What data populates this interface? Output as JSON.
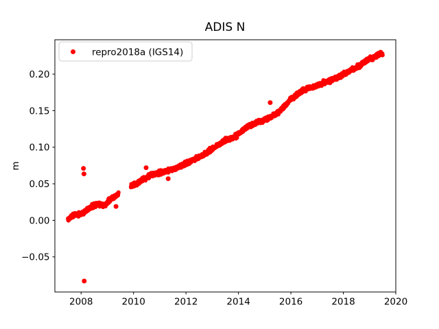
{
  "window": {
    "title": "ADIS N"
  },
  "chart_data": {
    "type": "scatter",
    "title": "ADIS N",
    "xlabel": "",
    "ylabel": "m",
    "xlim": [
      2007,
      2020
    ],
    "ylim": [
      -0.098,
      0.247
    ],
    "xtick_values": [
      2008,
      2010,
      2012,
      2014,
      2016,
      2018,
      2020
    ],
    "xtick_labels": [
      "2008",
      "2010",
      "2012",
      "2014",
      "2016",
      "2018",
      "2020"
    ],
    "ytick_values": [
      -0.05,
      0.0,
      0.05,
      0.1,
      0.15,
      0.2
    ],
    "ytick_labels": [
      "−0.05",
      "0.00",
      "0.05",
      "0.10",
      "0.15",
      "0.20"
    ],
    "grid": false,
    "legend": {
      "position": "upper left",
      "label": "repro2018a (IGS14)"
    },
    "colors": {
      "background": "#ffffff",
      "text": "#000000",
      "spine": "#000000",
      "legend_border": "#cccccc",
      "marker": "#ff0000"
    },
    "series": [
      {
        "name": "repro2018a (IGS14)",
        "color": "#ff0000",
        "marker": "o",
        "marker_radius_px": 3,
        "x_start": 2007.5,
        "x_end": 2019.5,
        "points_per_year": 150,
        "noise_sd": 0.0014,
        "seed": 11,
        "gaps": [
          [
            2009.43,
            2009.9
          ]
        ],
        "trend_anchors": [
          [
            2007.5,
            0.001
          ],
          [
            2007.75,
            0.008
          ],
          [
            2008.05,
            0.01
          ],
          [
            2008.35,
            0.018
          ],
          [
            2008.65,
            0.022
          ],
          [
            2008.9,
            0.0205
          ],
          [
            2009.15,
            0.03
          ],
          [
            2009.43,
            0.036
          ],
          [
            2009.9,
            0.047
          ],
          [
            2010.1,
            0.05
          ],
          [
            2010.3,
            0.0545
          ],
          [
            2010.58,
            0.06
          ],
          [
            2010.75,
            0.0635
          ],
          [
            2011.1,
            0.0655
          ],
          [
            2011.5,
            0.07
          ],
          [
            2012.0,
            0.0775
          ],
          [
            2012.25,
            0.0825
          ],
          [
            2012.6,
            0.088
          ],
          [
            2013.0,
            0.097
          ],
          [
            2013.5,
            0.11
          ],
          [
            2013.8,
            0.1125
          ],
          [
            2014.35,
            0.128
          ],
          [
            2014.8,
            0.135
          ],
          [
            2015.12,
            0.139
          ],
          [
            2015.6,
            0.15
          ],
          [
            2016.0,
            0.166
          ],
          [
            2016.45,
            0.178
          ],
          [
            2017.0,
            0.1845
          ],
          [
            2017.75,
            0.195
          ],
          [
            2018.2,
            0.203
          ],
          [
            2018.6,
            0.211
          ],
          [
            2018.95,
            0.22
          ],
          [
            2019.2,
            0.223
          ],
          [
            2019.35,
            0.228
          ],
          [
            2019.5,
            0.228
          ]
        ],
        "outliers": [
          [
            2008.09,
            0.071
          ],
          [
            2008.11,
            0.0635
          ],
          [
            2008.12,
            -0.083
          ],
          [
            2009.33,
            0.019
          ],
          [
            2010.48,
            0.072
          ],
          [
            2011.32,
            0.057
          ],
          [
            2015.21,
            0.161
          ]
        ]
      }
    ]
  }
}
